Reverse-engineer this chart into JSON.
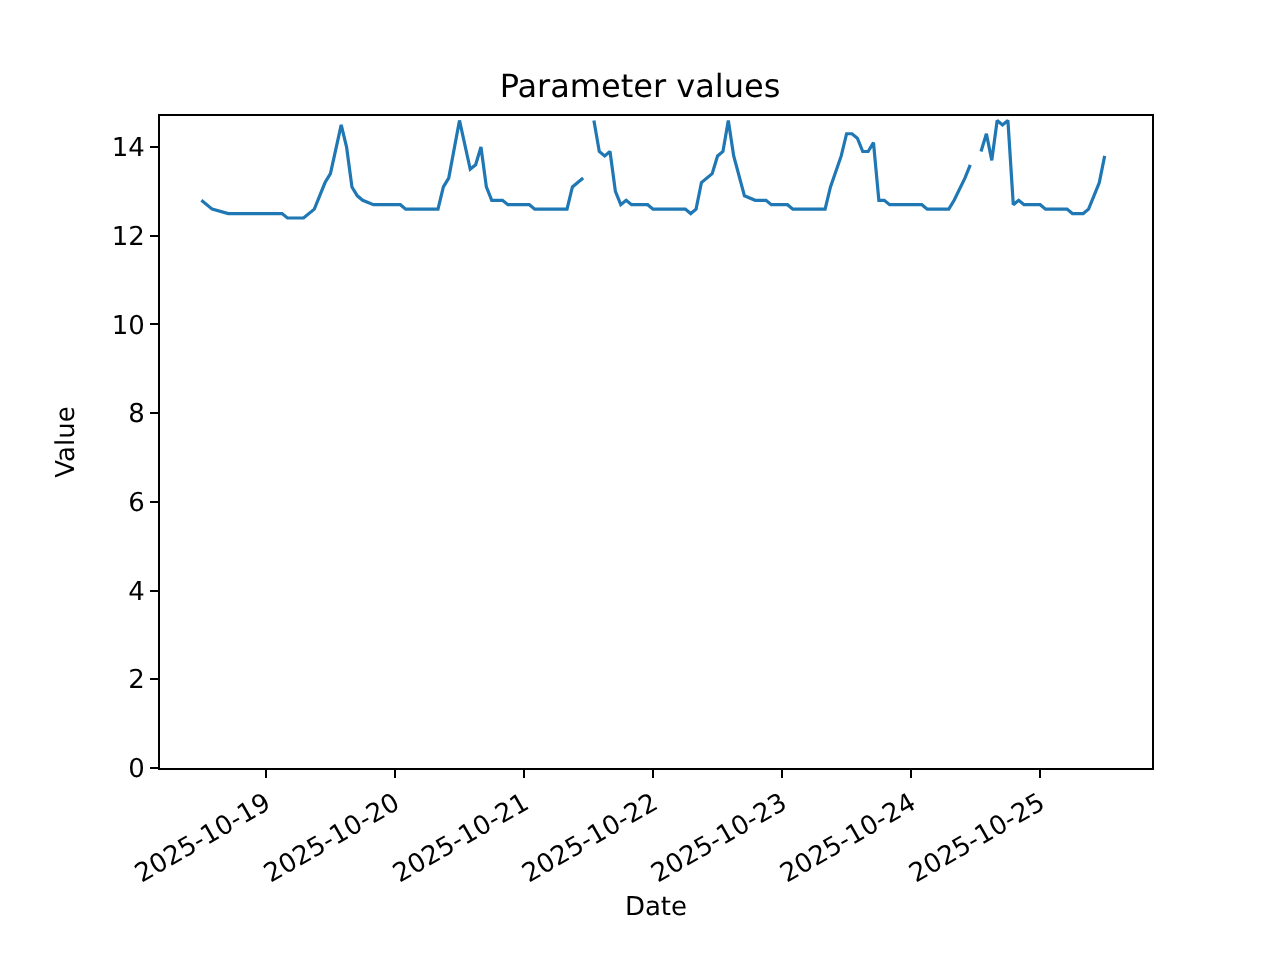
{
  "chart_data": {
    "type": "line",
    "title": "Parameter values",
    "xlabel": "Date",
    "ylabel": "Value",
    "x": [
      "2025-10-18T12:00",
      "2025-10-18T14:00",
      "2025-10-18T17:00",
      "2025-10-19T03:00",
      "2025-10-19T04:00",
      "2025-10-19T07:00",
      "2025-10-19T09:00",
      "2025-10-19T11:00",
      "2025-10-19T12:00",
      "2025-10-19T14:00",
      "2025-10-19T15:00",
      "2025-10-19T16:00",
      "2025-10-19T17:00",
      "2025-10-19T18:00",
      "2025-10-19T20:00",
      "2025-10-20T01:00",
      "2025-10-20T02:00",
      "2025-10-20T08:00",
      "2025-10-20T09:00",
      "2025-10-20T10:00",
      "2025-10-20T12:00",
      "2025-10-20T14:00",
      "2025-10-20T15:00",
      "2025-10-20T16:00",
      "2025-10-20T17:00",
      "2025-10-20T18:00",
      "2025-10-20T20:00",
      "2025-10-20T21:00",
      "2025-10-21T01:00",
      "2025-10-21T02:00",
      "2025-10-21T08:00",
      "2025-10-21T09:00",
      "2025-10-21T11:00",
      "2025-10-21T12:00",
      "2025-10-21T13:00",
      "2025-10-21T14:00",
      "2025-10-21T15:00",
      "2025-10-21T16:00",
      "2025-10-21T17:00",
      "2025-10-21T18:00",
      "2025-10-21T19:00",
      "2025-10-21T20:00",
      "2025-10-21T23:00",
      "2025-10-22T00:00",
      "2025-10-22T06:00",
      "2025-10-22T07:00",
      "2025-10-22T08:00",
      "2025-10-22T09:00",
      "2025-10-22T11:00",
      "2025-10-22T12:00",
      "2025-10-22T13:00",
      "2025-10-22T14:00",
      "2025-10-22T15:00",
      "2025-10-22T17:00",
      "2025-10-22T19:00",
      "2025-10-22T21:00",
      "2025-10-22T22:00",
      "2025-10-23T01:00",
      "2025-10-23T02:00",
      "2025-10-23T08:00",
      "2025-10-23T09:00",
      "2025-10-23T11:00",
      "2025-10-23T12:00",
      "2025-10-23T13:00",
      "2025-10-23T14:00",
      "2025-10-23T15:00",
      "2025-10-23T16:00",
      "2025-10-23T17:00",
      "2025-10-23T18:00",
      "2025-10-23T19:00",
      "2025-10-23T20:00",
      "2025-10-24T02:00",
      "2025-10-24T03:00",
      "2025-10-24T07:00",
      "2025-10-24T08:00",
      "2025-10-24T10:00",
      "2025-10-24T11:00",
      "2025-10-24T12:00",
      "2025-10-24T13:00",
      "2025-10-24T14:00",
      "2025-10-24T15:00",
      "2025-10-24T16:00",
      "2025-10-24T17:00",
      "2025-10-24T18:00",
      "2025-10-24T19:00",
      "2025-10-24T20:00",
      "2025-10-24T21:00",
      "2025-10-25T00:00",
      "2025-10-25T01:00",
      "2025-10-25T05:00",
      "2025-10-25T06:00",
      "2025-10-25T08:00",
      "2025-10-25T09:00",
      "2025-10-25T10:00",
      "2025-10-25T11:00",
      "2025-10-25T12:00"
    ],
    "series": [
      {
        "color": "#1f77b4",
        "values": [
          12.8,
          12.6,
          12.5,
          12.5,
          12.4,
          12.4,
          12.6,
          13.2,
          13.4,
          14.5,
          14.0,
          13.1,
          12.9,
          12.8,
          12.7,
          12.7,
          12.6,
          12.6,
          13.1,
          13.3,
          14.6,
          13.5,
          13.6,
          14.0,
          13.1,
          12.8,
          12.8,
          12.7,
          12.7,
          12.6,
          12.6,
          13.1,
          13.3,
          null,
          14.6,
          13.9,
          13.8,
          13.9,
          13.0,
          12.7,
          12.8,
          12.7,
          12.7,
          12.6,
          12.6,
          12.5,
          12.6,
          13.2,
          13.4,
          13.8,
          13.9,
          14.6,
          13.8,
          12.9,
          12.8,
          12.8,
          12.7,
          12.7,
          12.6,
          12.6,
          13.1,
          13.8,
          14.3,
          14.3,
          14.2,
          13.9,
          13.9,
          14.1,
          12.8,
          12.8,
          12.7,
          12.7,
          12.6,
          12.6,
          12.8,
          13.3,
          13.6,
          null,
          13.9,
          14.3,
          13.7,
          14.6,
          14.5,
          14.6,
          12.7,
          12.8,
          12.7,
          12.7,
          12.6,
          12.6,
          12.5,
          12.5,
          12.6,
          12.9,
          13.2,
          13.8
        ]
      }
    ],
    "xlim": [
      "2025-10-18T04:18",
      "2025-10-25T20:48"
    ],
    "xticks": [
      {
        "value": "2025-10-19",
        "label": "2025-10-19"
      },
      {
        "value": "2025-10-20",
        "label": "2025-10-20"
      },
      {
        "value": "2025-10-21",
        "label": "2025-10-21"
      },
      {
        "value": "2025-10-22",
        "label": "2025-10-22"
      },
      {
        "value": "2025-10-23",
        "label": "2025-10-23"
      },
      {
        "value": "2025-10-24",
        "label": "2025-10-24"
      },
      {
        "value": "2025-10-25",
        "label": "2025-10-25"
      }
    ],
    "ylim": [
      0,
      14.7
    ],
    "yticks": [
      0,
      2,
      4,
      6,
      8,
      10,
      12,
      14
    ],
    "marker": "none",
    "line_style": "solid"
  }
}
